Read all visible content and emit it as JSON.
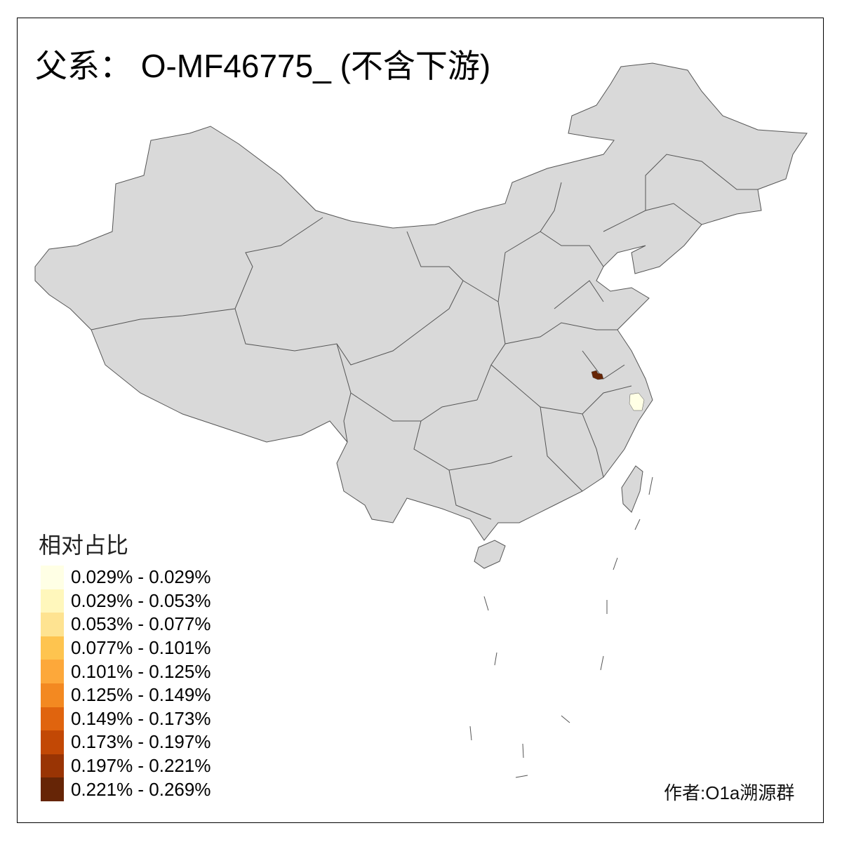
{
  "title": "父系： O-MF46775_ (不含下游)",
  "map": {
    "base_fill": "#D9D9D9",
    "border_color": "#555555",
    "highlighted_regions": [
      {
        "class_index": 9,
        "color": "#662506"
      },
      {
        "class_index": 0,
        "color": "#FFFFE5"
      }
    ]
  },
  "legend": {
    "title": "相对占比",
    "items": [
      {
        "label": "0.029% - 0.029%",
        "color": "#FFFFE5"
      },
      {
        "label": "0.029% - 0.053%",
        "color": "#FFF7BC"
      },
      {
        "label": "0.053% - 0.077%",
        "color": "#FEE391"
      },
      {
        "label": "0.077% - 0.101%",
        "color": "#FEC44F"
      },
      {
        "label": "0.101% - 0.125%",
        "color": "#FDA83A"
      },
      {
        "label": "0.125% - 0.149%",
        "color": "#F38921"
      },
      {
        "label": "0.149% - 0.173%",
        "color": "#E0640E"
      },
      {
        "label": "0.173% - 0.197%",
        "color": "#C24805"
      },
      {
        "label": "0.197% - 0.221%",
        "color": "#993404"
      },
      {
        "label": "0.221% - 0.269%",
        "color": "#662506"
      }
    ]
  },
  "credit": "作者:O1a溯源群"
}
